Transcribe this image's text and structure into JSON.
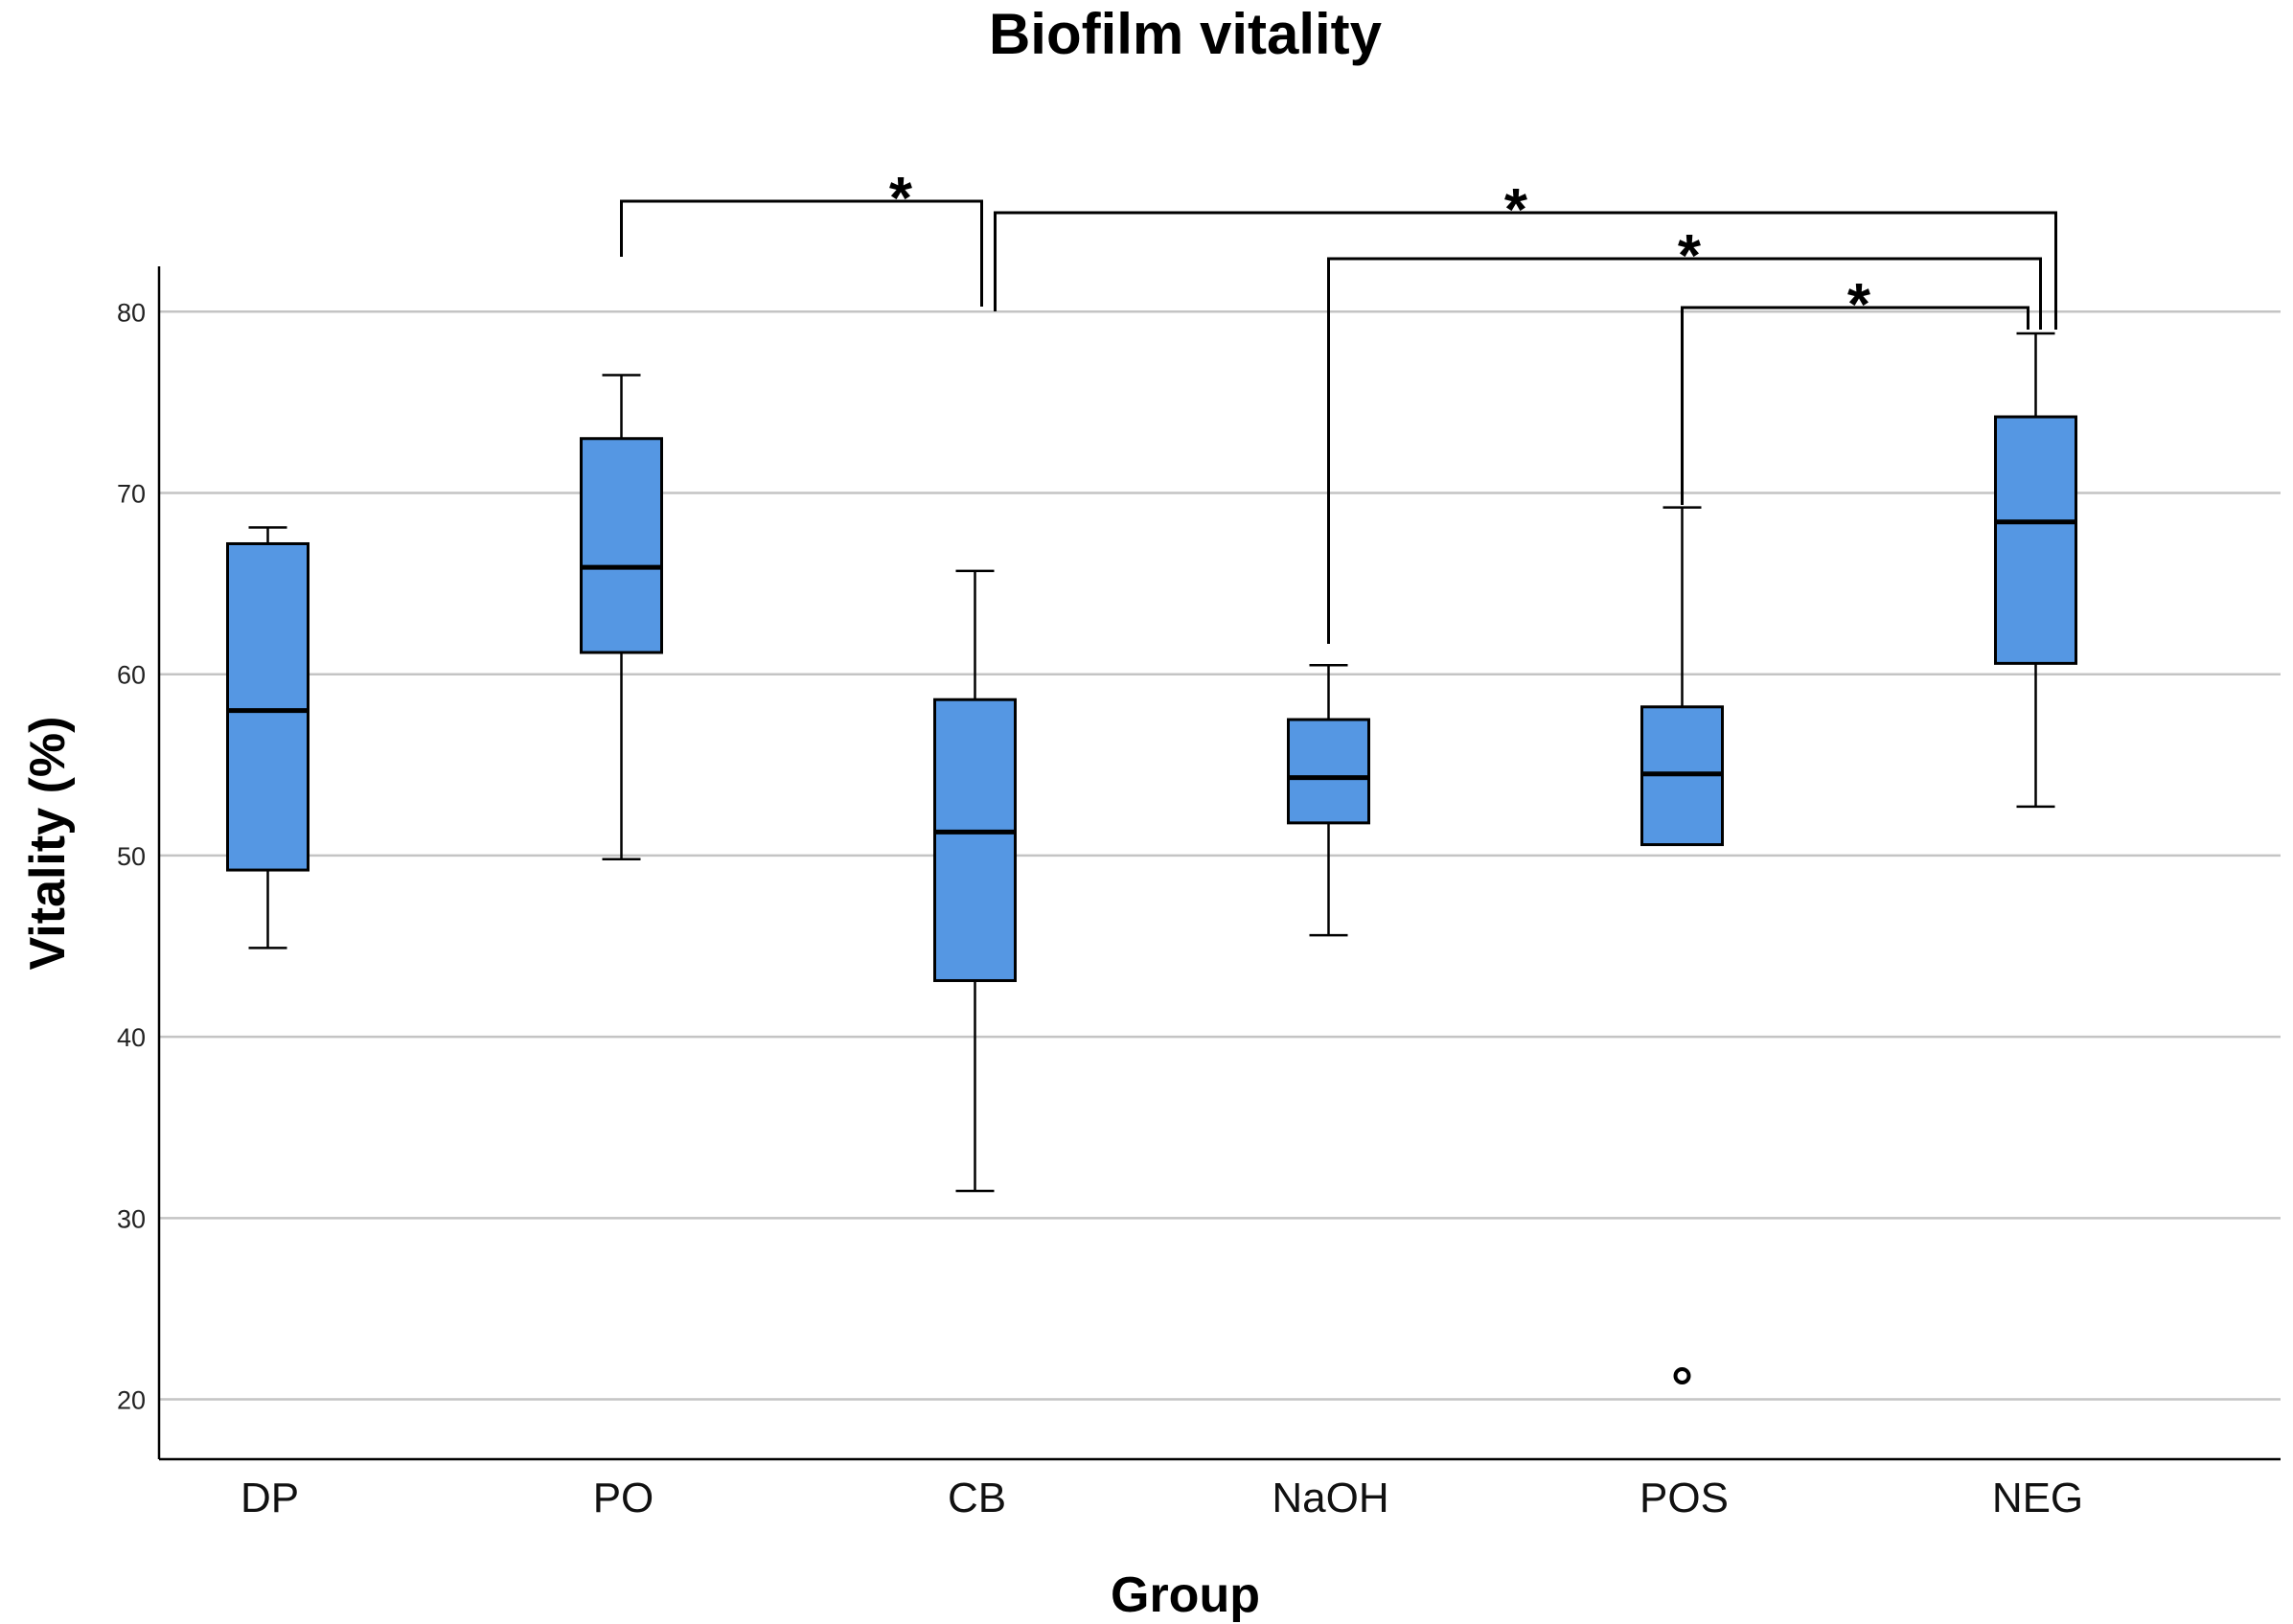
{
  "chart_data": {
    "type": "boxplot",
    "title": "Biofilm vitality",
    "xlabel": "Group",
    "ylabel": "Vitality (%)",
    "ylim": [
      16.7,
      82.5
    ],
    "yticks": [
      20,
      30,
      40,
      50,
      60,
      70,
      80
    ],
    "grid": true,
    "box_color": "#5597E3",
    "categories": [
      "DP",
      "PO",
      "CB",
      "NaOH",
      "POS",
      "NEG"
    ],
    "series": [
      {
        "name": "DP",
        "whisker_low": 44.9,
        "q1": 49.2,
        "median": 58.0,
        "q3": 67.2,
        "whisker_high": 68.1,
        "outliers": []
      },
      {
        "name": "PO",
        "whisker_low": 49.8,
        "q1": 61.2,
        "median": 65.9,
        "q3": 73.0,
        "whisker_high": 76.5,
        "outliers": []
      },
      {
        "name": "CB",
        "whisker_low": 31.5,
        "q1": 43.1,
        "median": 51.3,
        "q3": 58.6,
        "whisker_high": 65.7,
        "outliers": []
      },
      {
        "name": "NaOH",
        "whisker_low": 45.6,
        "q1": 51.8,
        "median": 54.3,
        "q3": 57.5,
        "whisker_high": 60.5,
        "outliers": []
      },
      {
        "name": "POS",
        "whisker_low": 50.6,
        "q1": 50.6,
        "median": 54.5,
        "q3": 58.2,
        "whisker_high": 69.2,
        "outliers": [
          21.3
        ]
      },
      {
        "name": "NEG",
        "whisker_low": 52.7,
        "q1": 60.6,
        "median": 68.4,
        "q3": 74.2,
        "whisker_high": 78.8,
        "outliers": []
      }
    ],
    "significance": [
      {
        "groups": [
          "PO",
          "CB"
        ],
        "label": "*"
      },
      {
        "groups": [
          "CB",
          "NEG"
        ],
        "label": "*"
      },
      {
        "groups": [
          "NaOH",
          "NEG"
        ],
        "label": "*"
      },
      {
        "groups": [
          "POS",
          "NEG"
        ],
        "label": "*"
      }
    ]
  }
}
